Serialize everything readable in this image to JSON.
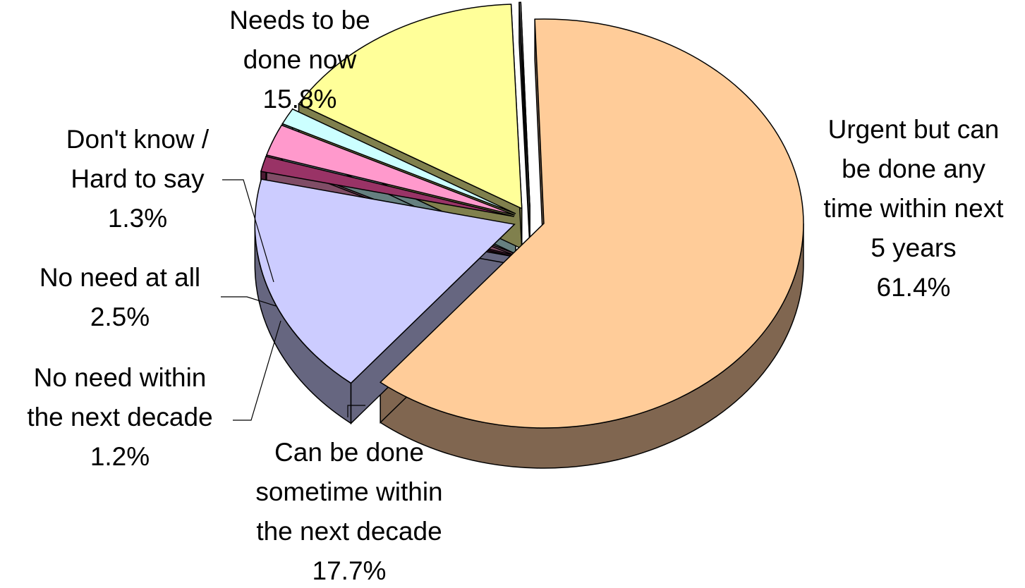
{
  "chart_data": {
    "type": "pie",
    "style": "3d-exploded",
    "title": "",
    "slices": [
      {
        "label_lines": [
          "Urgent but can",
          "be done any",
          "time within next",
          "5 years"
        ],
        "value": 61.4,
        "value_label": "61.4%",
        "color": "#FFCC99",
        "side_color": "#806650"
      },
      {
        "label_lines": [
          "Can be done",
          "sometime within",
          "the next decade"
        ],
        "value": 17.7,
        "value_label": "17.7%",
        "color": "#CCCCFF",
        "side_color": "#666680"
      },
      {
        "label_lines": [
          "No need within",
          "the next decade"
        ],
        "value": 1.2,
        "value_label": "1.2%",
        "color": "#993366",
        "side_color": "#4d1a33"
      },
      {
        "label_lines": [
          "No need at all"
        ],
        "value": 2.5,
        "value_label": "2.5%",
        "color": "#FF99CC",
        "side_color": "#804d66"
      },
      {
        "label_lines": [
          "Don't know /",
          "Hard to say"
        ],
        "value": 1.3,
        "value_label": "1.3%",
        "color": "#CCFFFF",
        "side_color": "#668080"
      },
      {
        "label_lines": [
          "Needs to be",
          "done now"
        ],
        "value": 15.8,
        "value_label": "15.8%",
        "color": "#FFFF99",
        "side_color": "#80804d"
      },
      {
        "label_lines": [],
        "value": 0.1,
        "value_label": "",
        "color": "#969696",
        "side_color": "#4b4b4b"
      }
    ]
  }
}
